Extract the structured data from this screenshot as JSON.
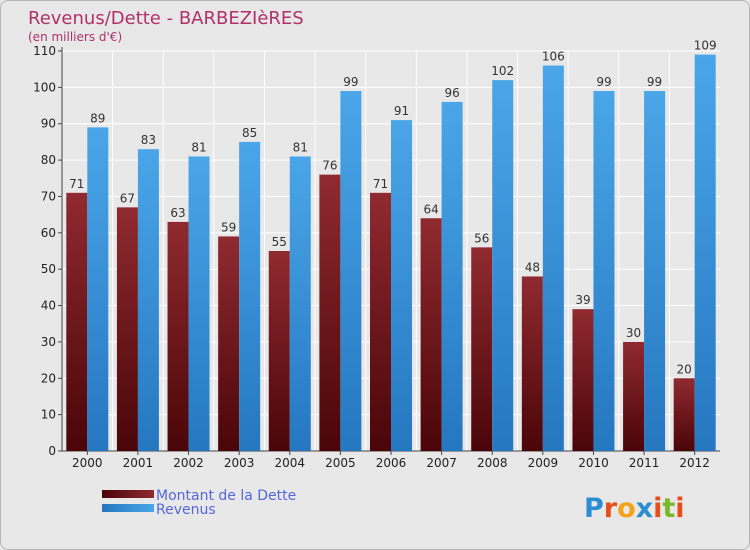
{
  "chart_data": {
    "type": "bar",
    "title": "Revenus/Dette - BARBEZIèRES",
    "subtitle": "(en milliers d'€)",
    "categories": [
      "2000",
      "2001",
      "2002",
      "2003",
      "2004",
      "2005",
      "2006",
      "2007",
      "2008",
      "2009",
      "2010",
      "2011",
      "2012"
    ],
    "series": [
      {
        "name": "Montant de la Dette",
        "color": "#7a1e22",
        "values": [
          71,
          67,
          63,
          59,
          55,
          76,
          71,
          64,
          56,
          48,
          39,
          30,
          20
        ]
      },
      {
        "name": "Revenus",
        "color": "#3a8fd6",
        "values": [
          89,
          83,
          81,
          85,
          81,
          99,
          91,
          96,
          102,
          106,
          99,
          99,
          109
        ]
      }
    ],
    "y_ticks": [
      0,
      10,
      20,
      30,
      40,
      50,
      60,
      70,
      80,
      90,
      100,
      110
    ],
    "ylim": [
      0,
      110
    ],
    "grid": true,
    "legend": "bottom-left"
  },
  "logo": {
    "letters": [
      "P",
      "r",
      "o",
      "x",
      "i",
      "t",
      "i"
    ],
    "colors": [
      "#2a8fd0",
      "#e84e1b",
      "#f5a31a",
      "#2a8fd0",
      "#e84e1b",
      "#78b829",
      "#e84e1b"
    ]
  }
}
